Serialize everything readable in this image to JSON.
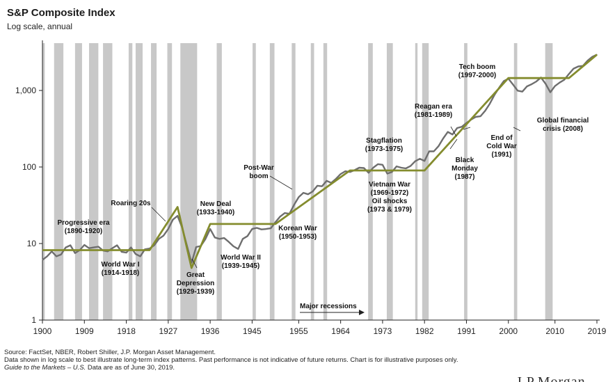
{
  "header": {
    "title": "S&P Composite Index",
    "subtitle": "Log scale, annual"
  },
  "chart_data": {
    "type": "line",
    "title": "S&P Composite Index",
    "subtitle": "Log scale, annual",
    "yscale": "log",
    "ylim": [
      1,
      3000
    ],
    "xlim": [
      1900,
      2019
    ],
    "x_ticks": [
      1900,
      1909,
      1918,
      1927,
      1936,
      1945,
      1955,
      1964,
      1973,
      1982,
      1991,
      2000,
      2010,
      2019
    ],
    "y_ticks": [
      {
        "value": 1,
        "label": "1"
      },
      {
        "value": 10,
        "label": "10"
      },
      {
        "value": 100,
        "label": "100"
      },
      {
        "value": 1000,
        "label": "1,000"
      }
    ],
    "recessions": [
      [
        1900,
        1900.5
      ],
      [
        1902.5,
        1904.5
      ],
      [
        1907,
        1908.5
      ],
      [
        1910,
        1912
      ],
      [
        1913,
        1915
      ],
      [
        1918.5,
        1919.3
      ],
      [
        1920,
        1921.5
      ],
      [
        1923.3,
        1924.5
      ],
      [
        1926.8,
        1927.8
      ],
      [
        1929.6,
        1933.2
      ],
      [
        1937.4,
        1938.5
      ],
      [
        1945.1,
        1945.8
      ],
      [
        1948.8,
        1949.8
      ],
      [
        1953.5,
        1954.3
      ],
      [
        1957.6,
        1958.3
      ],
      [
        1960.3,
        1961.1
      ],
      [
        1969.9,
        1970.9
      ],
      [
        1973.9,
        1975.2
      ],
      [
        1980,
        1980.5
      ],
      [
        1981.5,
        1982.9
      ],
      [
        1990.5,
        1991.2
      ],
      [
        2001.2,
        2001.9
      ],
      [
        2007.9,
        2009.5
      ]
    ],
    "index_series": [
      [
        1900,
        6.1
      ],
      [
        1901,
        6.8
      ],
      [
        1902,
        7.9
      ],
      [
        1903,
        6.8
      ],
      [
        1904,
        7.2
      ],
      [
        1905,
        8.9
      ],
      [
        1906,
        9.5
      ],
      [
        1907,
        7.5
      ],
      [
        1908,
        8.2
      ],
      [
        1909,
        9.6
      ],
      [
        1910,
        8.7
      ],
      [
        1911,
        8.9
      ],
      [
        1912,
        9.1
      ],
      [
        1913,
        8.1
      ],
      [
        1914,
        7.9
      ],
      [
        1915,
        8.7
      ],
      [
        1916,
        9.5
      ],
      [
        1917,
        7.8
      ],
      [
        1918,
        7.6
      ],
      [
        1919,
        8.9
      ],
      [
        1920,
        7.3
      ],
      [
        1921,
        6.8
      ],
      [
        1922,
        8.4
      ],
      [
        1923,
        8.6
      ],
      [
        1924,
        9.5
      ],
      [
        1925,
        11.5
      ],
      [
        1926,
        12.7
      ],
      [
        1927,
        15.5
      ],
      [
        1928,
        20.5
      ],
      [
        1929,
        23.0
      ],
      [
        1930,
        16.0
      ],
      [
        1931,
        9.5
      ],
      [
        1932,
        5.6
      ],
      [
        1933,
        9.0
      ],
      [
        1934,
        9.3
      ],
      [
        1935,
        11.5
      ],
      [
        1936,
        15.5
      ],
      [
        1937,
        12.0
      ],
      [
        1938,
        11.5
      ],
      [
        1939,
        11.8
      ],
      [
        1940,
        10.5
      ],
      [
        1941,
        9.2
      ],
      [
        1942,
        8.5
      ],
      [
        1943,
        11.5
      ],
      [
        1944,
        12.5
      ],
      [
        1945,
        15.5
      ],
      [
        1946,
        16.0
      ],
      [
        1947,
        15.3
      ],
      [
        1948,
        15.5
      ],
      [
        1949,
        15.8
      ],
      [
        1950,
        19.0
      ],
      [
        1951,
        22.5
      ],
      [
        1952,
        25.0
      ],
      [
        1953,
        24.5
      ],
      [
        1954,
        32.0
      ],
      [
        1955,
        40.5
      ],
      [
        1956,
        46.0
      ],
      [
        1957,
        44.0
      ],
      [
        1958,
        48.0
      ],
      [
        1959,
        57.0
      ],
      [
        1960,
        56.0
      ],
      [
        1961,
        66.0
      ],
      [
        1962,
        62.0
      ],
      [
        1963,
        70.0
      ],
      [
        1964,
        81.0
      ],
      [
        1965,
        88.0
      ],
      [
        1966,
        86.0
      ],
      [
        1967,
        91.0
      ],
      [
        1968,
        98.0
      ],
      [
        1969,
        97.0
      ],
      [
        1970,
        84.0
      ],
      [
        1971,
        98.0
      ],
      [
        1972,
        109.0
      ],
      [
        1973,
        107.0
      ],
      [
        1974,
        82.0
      ],
      [
        1975,
        86.0
      ],
      [
        1976,
        102.0
      ],
      [
        1977,
        98.0
      ],
      [
        1978,
        96.0
      ],
      [
        1979,
        103.0
      ],
      [
        1980,
        119.0
      ],
      [
        1981,
        128.0
      ],
      [
        1982,
        120.0
      ],
      [
        1983,
        160.0
      ],
      [
        1984,
        160.0
      ],
      [
        1985,
        187.0
      ],
      [
        1986,
        236.0
      ],
      [
        1987,
        287.0
      ],
      [
        1988,
        266.0
      ],
      [
        1989,
        323.0
      ],
      [
        1990,
        335.0
      ],
      [
        1991,
        376.0
      ],
      [
        1992,
        416.0
      ],
      [
        1993,
        451.0
      ],
      [
        1994,
        460.0
      ],
      [
        1995,
        542.0
      ],
      [
        1996,
        670.0
      ],
      [
        1997,
        873.0
      ],
      [
        1998,
        1085.0
      ],
      [
        1999,
        1327.0
      ],
      [
        2000,
        1427.0
      ],
      [
        2001,
        1194.0
      ],
      [
        2002,
        994.0
      ],
      [
        2003,
        965.0
      ],
      [
        2004,
        1131.0
      ],
      [
        2005,
        1207.0
      ],
      [
        2006,
        1310.0
      ],
      [
        2007,
        1477.0
      ],
      [
        2008,
        1220.0
      ],
      [
        2009,
        948.0
      ],
      [
        2010,
        1140.0
      ],
      [
        2011,
        1268.0
      ],
      [
        2012,
        1379.0
      ],
      [
        2013,
        1643.0
      ],
      [
        2014,
        1931.0
      ],
      [
        2015,
        2061.0
      ],
      [
        2016,
        2094.0
      ],
      [
        2017,
        2449.0
      ],
      [
        2018,
        2746.0
      ],
      [
        2019,
        2941.0
      ]
    ],
    "trend_series": [
      [
        1900,
        8.2
      ],
      [
        1923,
        8.2
      ],
      [
        1929,
        30.0
      ],
      [
        1932,
        4.8
      ],
      [
        1936,
        18.0
      ],
      [
        1950,
        18.0
      ],
      [
        1966,
        90.0
      ],
      [
        1982,
        90.0
      ],
      [
        2000,
        1450.0
      ],
      [
        2013,
        1450.0
      ],
      [
        2019,
        2941.0
      ]
    ],
    "annotations": [
      {
        "lines": [
          "Progressive era",
          "(1890-1920)"
        ]
      },
      {
        "lines": [
          "Roaring 20s"
        ]
      },
      {
        "lines": [
          "World War I",
          "(1914-1918)"
        ]
      },
      {
        "lines": [
          "Great",
          "Depression",
          "(1929-1939)"
        ]
      },
      {
        "lines": [
          "New Deal",
          "(1933-1940)"
        ]
      },
      {
        "lines": [
          "World War II",
          "(1939-1945)"
        ]
      },
      {
        "lines": [
          "Post-War",
          "boom"
        ]
      },
      {
        "lines": [
          "Korean War",
          "(1950-1953)"
        ]
      },
      {
        "lines": [
          "Stagflation",
          "(1973-1975)"
        ]
      },
      {
        "lines": [
          "Vietnam War",
          "(1969-1972)",
          "Oil shocks",
          "(1973 & 1979)"
        ]
      },
      {
        "lines": [
          "Reagan era",
          "(1981-1989)"
        ]
      },
      {
        "lines": [
          "Black",
          "Monday",
          "(1987)"
        ]
      },
      {
        "lines": [
          "End of",
          "Cold War",
          "(1991)"
        ]
      },
      {
        "lines": [
          "Tech boom",
          "(1997-2000)"
        ]
      },
      {
        "lines": [
          "Global financial",
          "crisis (2008)"
        ]
      }
    ],
    "legend_label": "Major recessions",
    "colors": {
      "index": "#6e6e6e",
      "trend": "#848c2e",
      "recession": "#c8c8c8",
      "axis": "#222222"
    }
  },
  "footer": {
    "source_line": "Source: FactSet, NBER, Robert Shiller, J.P. Morgan Asset Management.",
    "note_line": "Data shown in log scale to best illustrate long-term index patterns. Past performance is not indicative of future returns. Chart is for illustrative purposes only.",
    "guide_title": "Guide to the Markets – U.S.",
    "guide_rest": " Data are as of June 30, 2019."
  },
  "logo_text": "J.P.Morgan"
}
